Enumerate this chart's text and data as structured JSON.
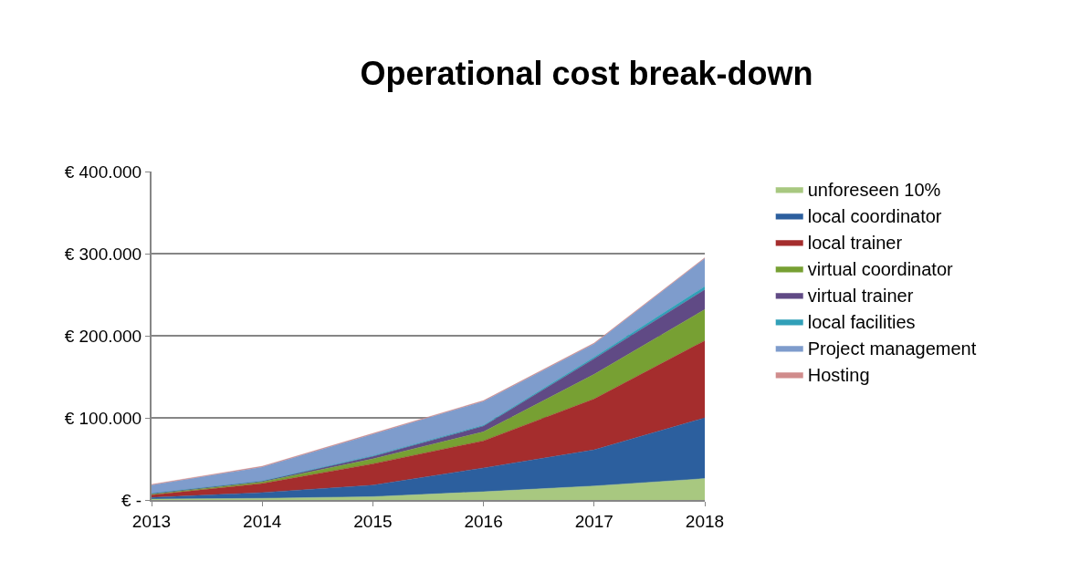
{
  "chart_data": {
    "type": "area",
    "stacked": true,
    "title": "Operational cost break-down",
    "x": [
      2013,
      2014,
      2015,
      2016,
      2017,
      2018
    ],
    "xlim": [
      2013,
      2018
    ],
    "xticks": [
      2013,
      2014,
      2015,
      2016,
      2017,
      2018
    ],
    "ylim": [
      0,
      400000
    ],
    "yticks": [
      {
        "value": 0,
        "label": "€ -"
      },
      {
        "value": 100000,
        "label": "€ 100.000"
      },
      {
        "value": 200000,
        "label": "€ 200.000"
      },
      {
        "value": 300000,
        "label": "€ 300.000"
      },
      {
        "value": 400000,
        "label": "€ 400.000"
      }
    ],
    "grid": "y",
    "legend": "right",
    "series": [
      {
        "name": "unforeseen 10%",
        "color": "#a8c880",
        "values": [
          1000,
          2000,
          4000,
          10000,
          17000,
          26000
        ]
      },
      {
        "name": "local coordinator",
        "color": "#2c5f9e",
        "values": [
          2000,
          7000,
          14000,
          29000,
          44000,
          74000
        ]
      },
      {
        "name": "local trainer",
        "color": "#a52d2d",
        "values": [
          3000,
          11000,
          26000,
          33000,
          62000,
          94000
        ]
      },
      {
        "name": "virtual coordinator",
        "color": "#77a033",
        "values": [
          1000,
          2000,
          6000,
          11000,
          30000,
          38000
        ]
      },
      {
        "name": "virtual trainer",
        "color": "#604a85",
        "values": [
          1000,
          1000,
          3000,
          7000,
          19000,
          24000
        ]
      },
      {
        "name": "local facilities",
        "color": "#31a0b8",
        "values": [
          0,
          0,
          1000,
          1000,
          2000,
          4000
        ]
      },
      {
        "name": "Project management",
        "color": "#7e9ccc",
        "values": [
          10000,
          17000,
          26000,
          29000,
          16000,
          34000
        ]
      },
      {
        "name": "Hosting",
        "color": "#d08c8c",
        "values": [
          1000,
          1000,
          1000,
          1000,
          1000,
          1000
        ]
      }
    ]
  }
}
